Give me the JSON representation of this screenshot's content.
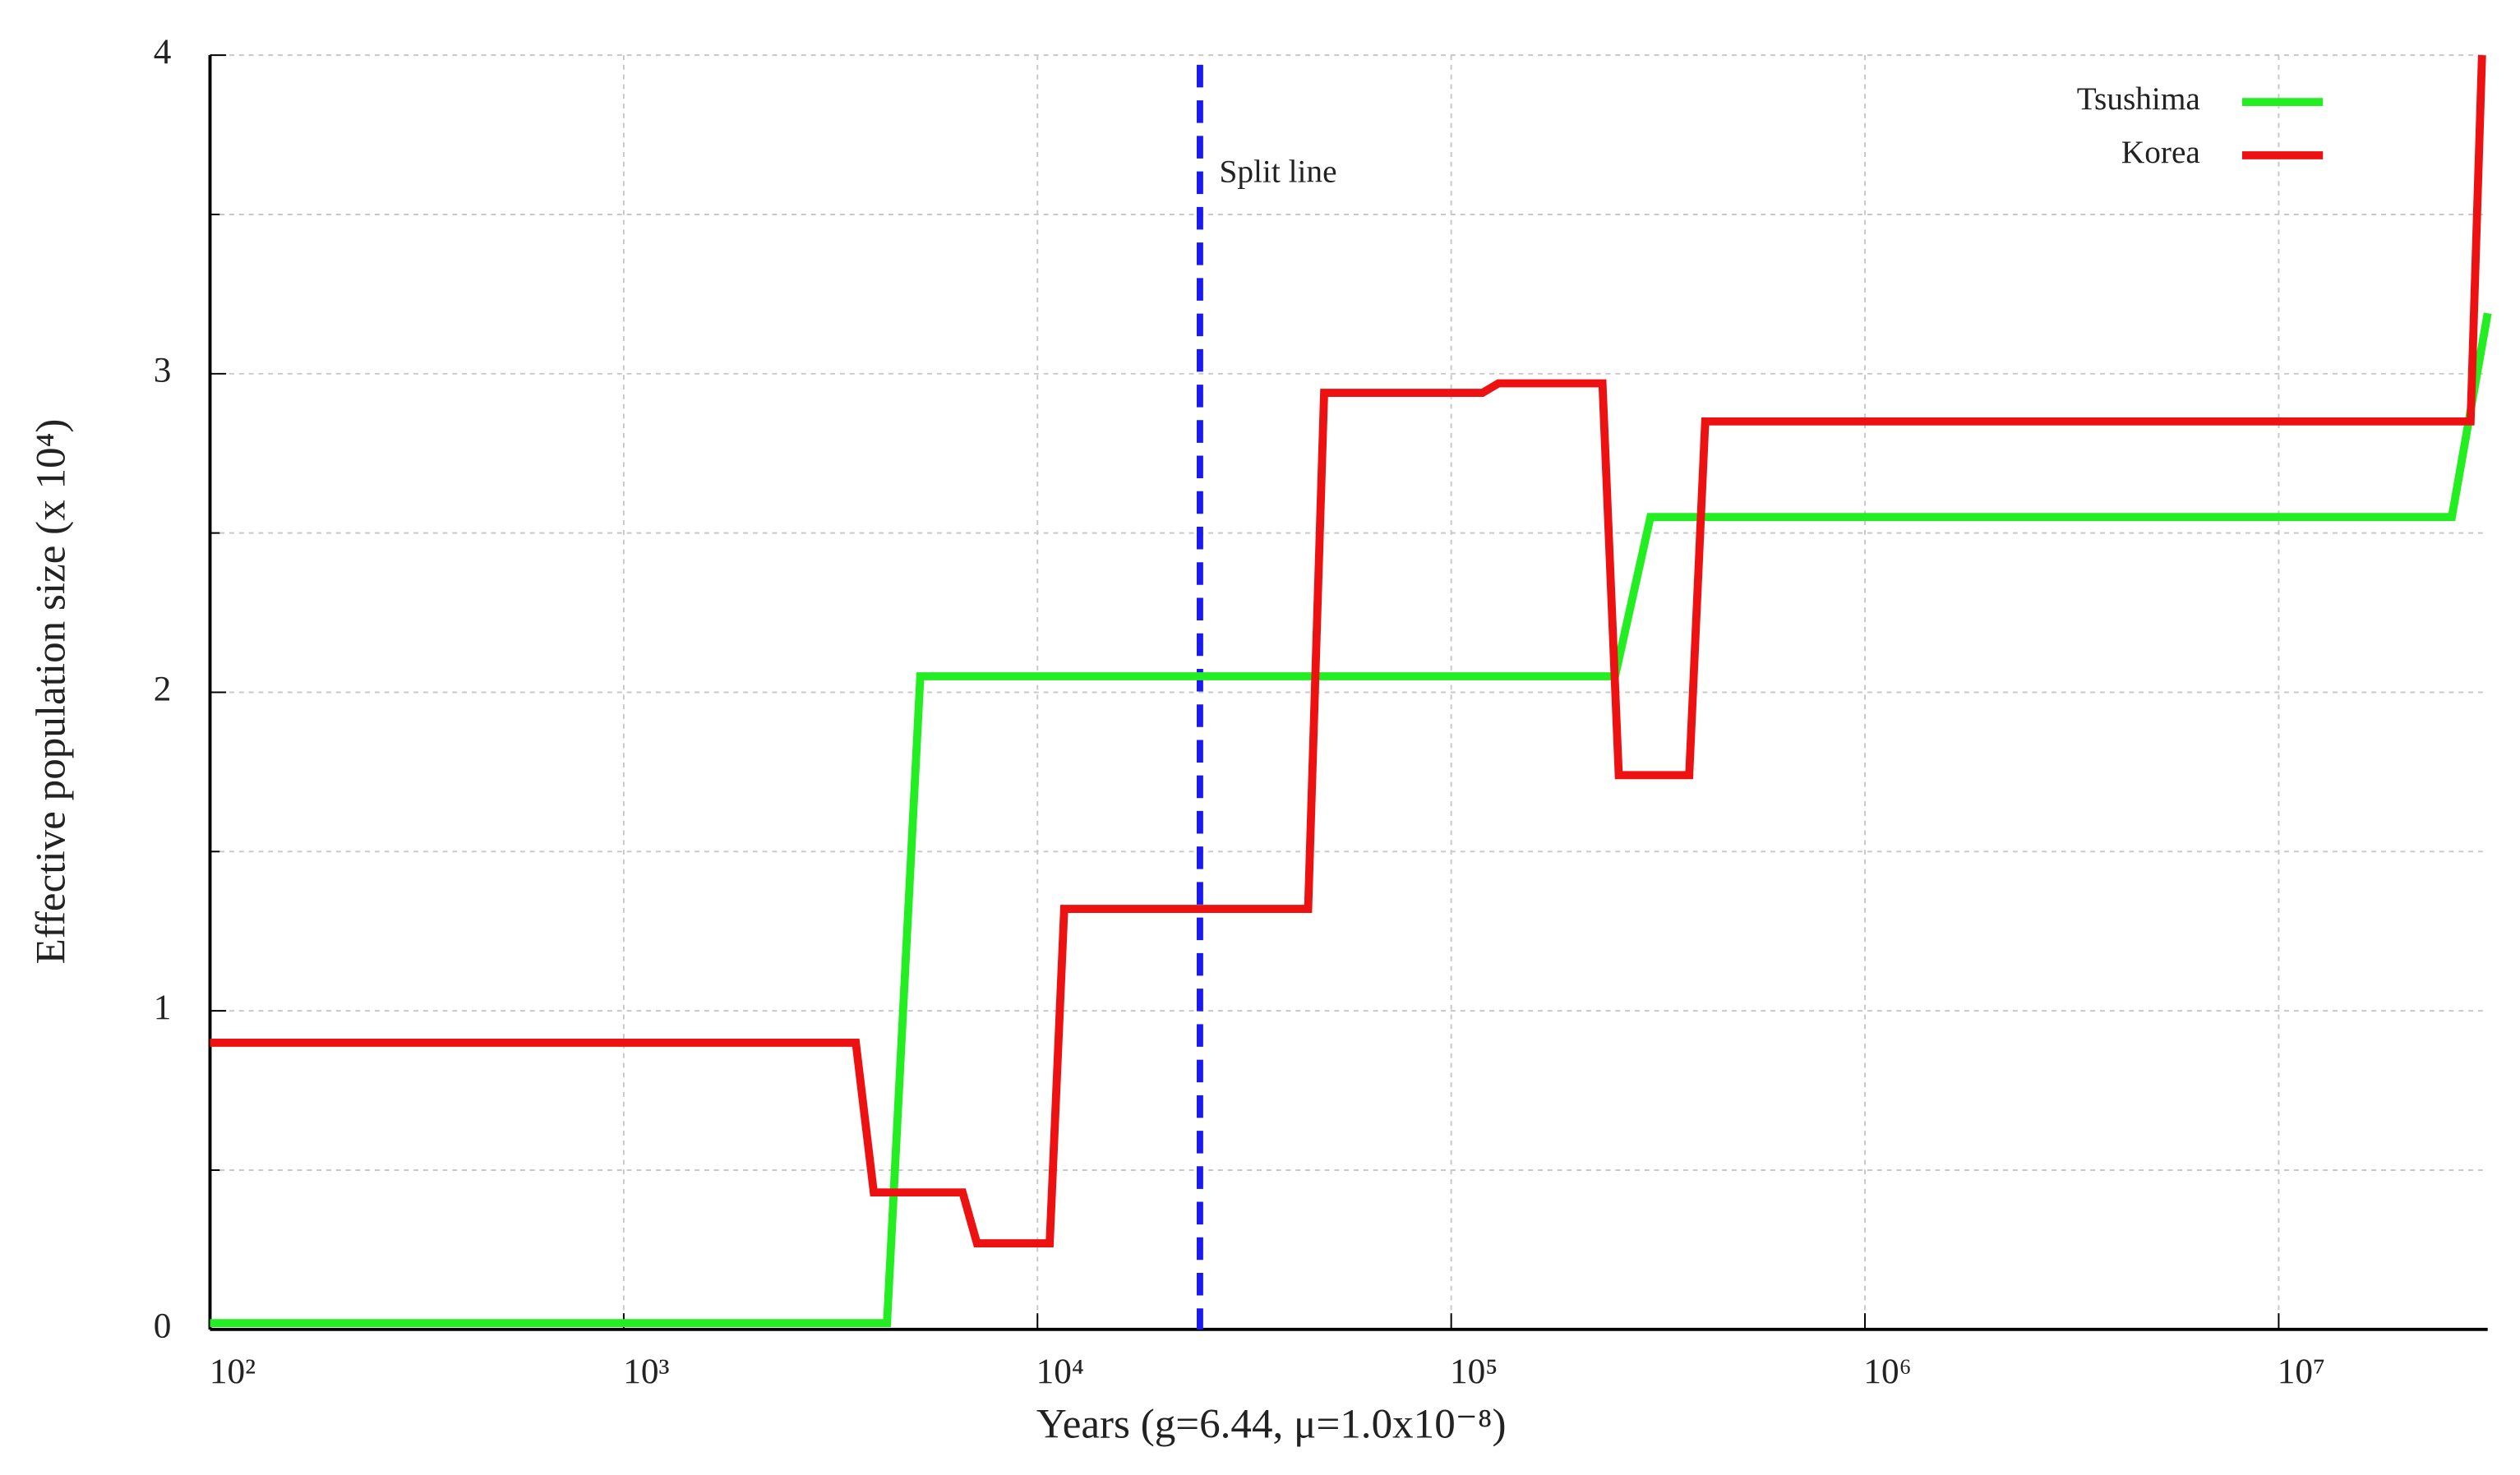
{
  "chart_data": {
    "type": "line",
    "xlabel": "Years (g=6.44, μ=1.0x10⁻⁸)",
    "ylabel": "Effective population size (x 10⁴)",
    "xscale": "log",
    "xlim": [
      100,
      32000000
    ],
    "ylim": [
      0,
      4
    ],
    "xticks": [
      {
        "value": 100,
        "label": "10²"
      },
      {
        "value": 1000,
        "label": "10³"
      },
      {
        "value": 10000,
        "label": "10⁴"
      },
      {
        "value": 100000,
        "label": "10⁵"
      },
      {
        "value": 1000000,
        "label": "10⁶"
      },
      {
        "value": 10000000,
        "label": "10⁷"
      }
    ],
    "yticks": [
      0,
      1,
      2,
      3,
      4
    ],
    "minor_yticks": [
      0.5,
      1.5,
      2.5,
      3.5
    ],
    "grid": true,
    "legend": "upper right",
    "series": [
      {
        "name": "Tsushima",
        "color": "#22ee22",
        "x": [
          100,
          4330,
          5210,
          249000,
          303000,
          26200000,
          32000000
        ],
        "values": [
          0.02,
          0.02,
          2.05,
          2.05,
          2.55,
          2.55,
          3.19
        ]
      },
      {
        "name": "Korea",
        "color": "#ee1111",
        "x": [
          100,
          3640,
          4020,
          6590,
          7140,
          10700,
          11600,
          45100,
          49300,
          119000,
          130000,
          232000,
          254000,
          376000,
          411000,
          29100000,
          31000000
        ],
        "values": [
          0.9,
          0.9,
          0.43,
          0.43,
          0.27,
          0.27,
          1.32,
          1.32,
          2.94,
          2.94,
          2.97,
          2.97,
          1.74,
          1.74,
          2.85,
          2.85,
          4.0
        ]
      }
    ],
    "split_line": {
      "x": 24700,
      "label": "Split line",
      "color": "#1a1aee"
    }
  }
}
